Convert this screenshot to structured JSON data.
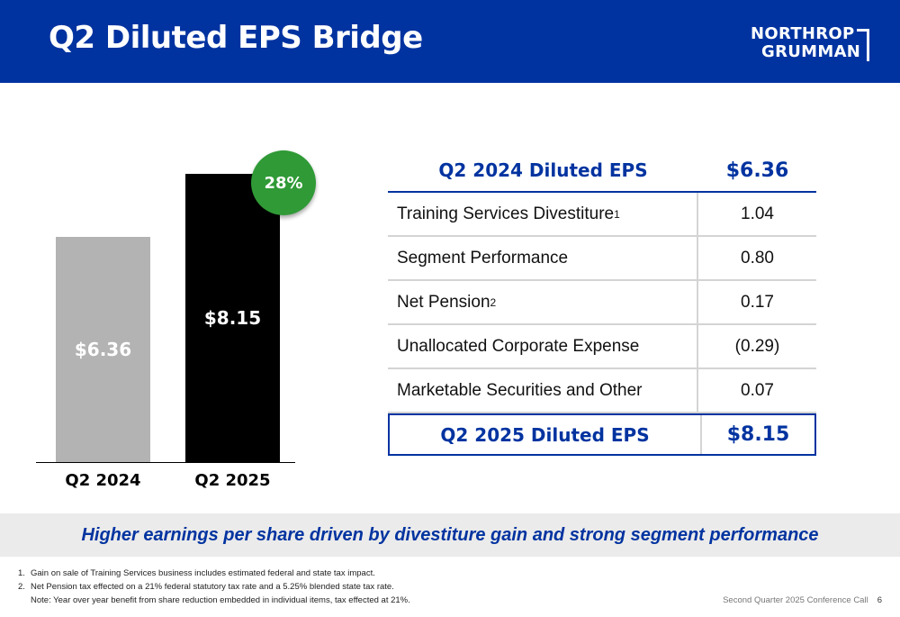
{
  "header": {
    "title": "Q2 Diluted EPS Bridge",
    "logo_line1": "NORTHROP",
    "logo_line2": "GRUMMAN"
  },
  "colors": {
    "brand_blue": "#0033a0",
    "bar_prior": "#b3b3b3",
    "bar_current": "#000000",
    "badge_green": "#2f9a36"
  },
  "chart_data": {
    "type": "bar",
    "categories": [
      "Q2 2024",
      "Q2 2025"
    ],
    "values": [
      6.36,
      8.15
    ],
    "data_labels": [
      "$6.36",
      "$8.15"
    ],
    "annotation": "28%",
    "title": "",
    "xlabel": "",
    "ylabel": "",
    "ylim": [
      0,
      10.25
    ],
    "grid": false
  },
  "table": {
    "header": {
      "label": "Q2 2024 Diluted EPS",
      "value": "$6.36"
    },
    "rows": [
      {
        "label": "Training Services Divestiture",
        "sup": "1",
        "value": "1.04"
      },
      {
        "label": "Segment Performance",
        "sup": "",
        "value": "0.80"
      },
      {
        "label": "Net Pension",
        "sup": "2",
        "value": "0.17"
      },
      {
        "label": "Unallocated Corporate Expense",
        "sup": "",
        "value": "(0.29)"
      },
      {
        "label": "Marketable Securities and Other",
        "sup": "",
        "value": "0.07"
      }
    ],
    "total": {
      "label": "Q2 2025 Diluted EPS",
      "value": "$8.15"
    }
  },
  "banner": "Higher earnings per share driven by divestiture gain and strong segment performance",
  "footnotes": [
    {
      "num": "1.",
      "text": "Gain on sale of Training Services business includes estimated federal and state tax impact."
    },
    {
      "num": "2.",
      "text": "Net Pension tax effected on a 21% federal statutory tax rate and a 5.25% blended state tax rate."
    }
  ],
  "note": "Note:  Year over year benefit from share reduction embedded in individual items, tax effected at 21%.",
  "footer": {
    "event": "Second Quarter 2025 Conference Call",
    "page": "6"
  }
}
